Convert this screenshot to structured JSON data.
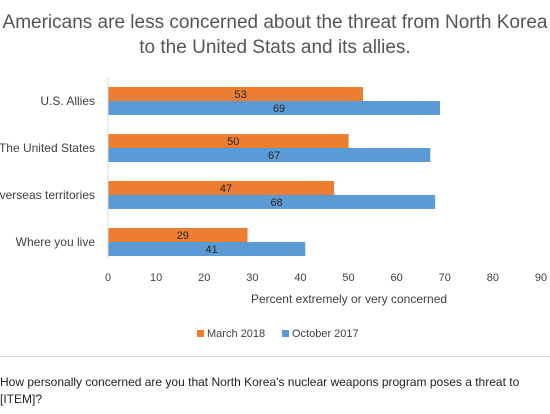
{
  "chart_data": {
    "type": "bar",
    "orientation": "horizontal",
    "title": "Americans are less concerned about the threat from North Korea to the United Stats and its allies.",
    "categories": [
      "U.S. Allies",
      "The United States",
      "U.S. overseas territories",
      "Where you live"
    ],
    "series": [
      {
        "name": "March 2018",
        "color": "#ED7D31",
        "values": [
          53,
          50,
          47,
          29
        ]
      },
      {
        "name": "October 2017",
        "color": "#5B9BD5",
        "values": [
          69,
          67,
          68,
          41
        ]
      }
    ],
    "xlabel": "Percent extremely or very concerned",
    "xlim": [
      0,
      90
    ],
    "xticks": [
      "0",
      "10",
      "20",
      "30",
      "40",
      "50",
      "60",
      "70",
      "80",
      "90"
    ],
    "grid": false,
    "legend_position": "bottom",
    "data_labels": true
  },
  "footnote": "How personally concerned are you that North Korea's nuclear weapons program poses a threat to [ITEM]?"
}
